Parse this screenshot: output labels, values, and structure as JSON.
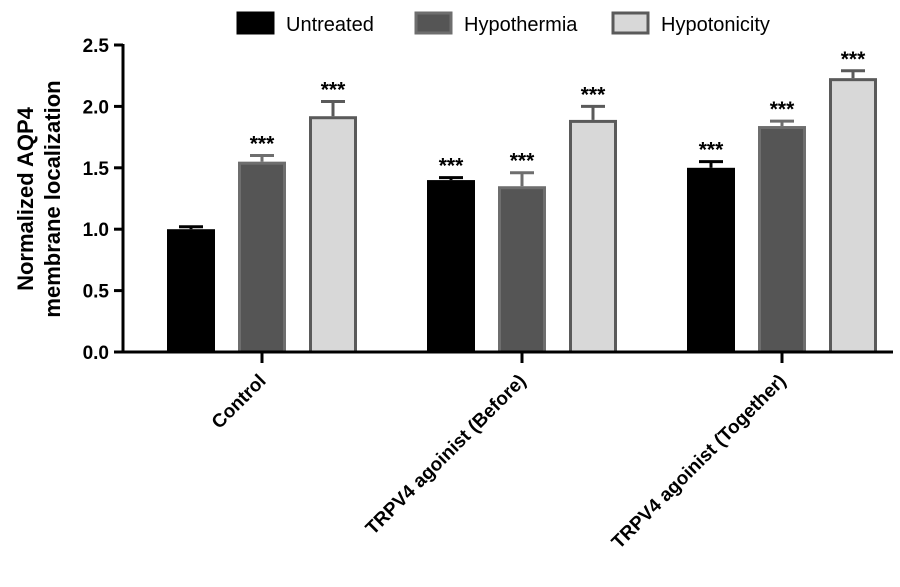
{
  "chart_data": {
    "type": "bar",
    "title": "",
    "xlabel": "",
    "ylabel": [
      "Normalized AQP4",
      "membrane localization"
    ],
    "ylim": [
      0,
      2.5
    ],
    "yticks": [
      "0.0",
      "0.5",
      "1.0",
      "1.5",
      "2.0",
      "2.5"
    ],
    "grid": false,
    "legend_position": "top",
    "categories": [
      "Control",
      "TRPV4 agoinist (Before)",
      "TRPV4 agoinist (Together)"
    ],
    "series": [
      {
        "name": "Untreated",
        "fill": "#000000",
        "stroke": "#000000",
        "values": [
          1.0,
          1.4,
          1.5
        ],
        "errors": [
          0.02,
          0.02,
          0.05
        ],
        "significance": [
          "",
          "***",
          "***"
        ]
      },
      {
        "name": "Hypothermia",
        "fill": "#555555",
        "stroke": "#6e6e6e",
        "values": [
          1.55,
          1.35,
          1.84
        ],
        "errors": [
          0.05,
          0.11,
          0.04
        ],
        "significance": [
          "***",
          "***",
          "***"
        ]
      },
      {
        "name": "Hypotonicity",
        "fill": "#d8d8d8",
        "stroke": "#5a5a5a",
        "values": [
          1.92,
          1.89,
          2.23
        ],
        "errors": [
          0.12,
          0.11,
          0.06
        ],
        "significance": [
          "***",
          "***",
          "***"
        ]
      }
    ]
  }
}
